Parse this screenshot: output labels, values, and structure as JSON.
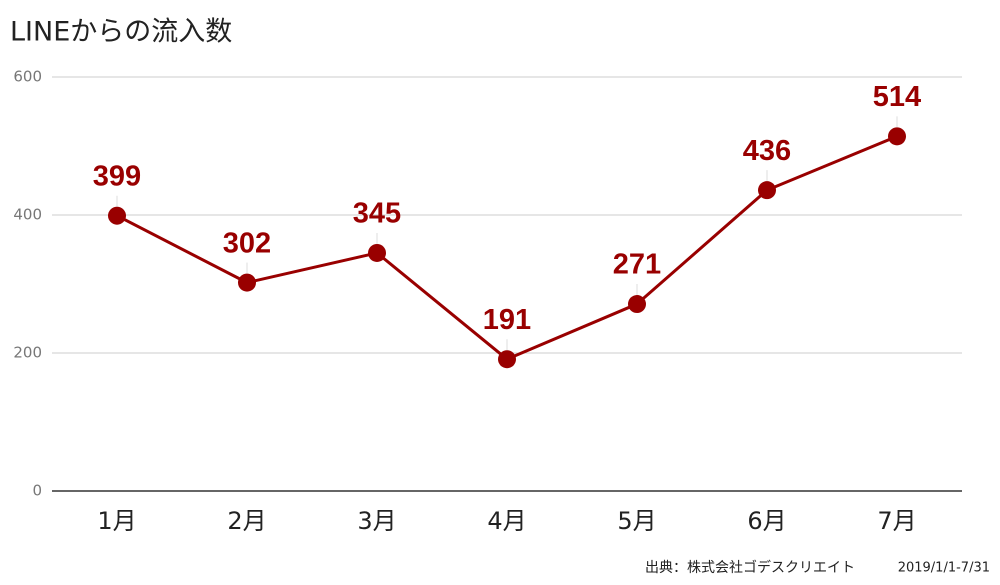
{
  "chart_data": {
    "type": "line",
    "title": "LINEからの流入数",
    "categories": [
      "1月",
      "2月",
      "3月",
      "4月",
      "5月",
      "6月",
      "7月"
    ],
    "series": [
      {
        "name": "LINEからの流入数",
        "color": "#990000",
        "values": [
          399,
          302,
          345,
          191,
          271,
          436,
          514
        ]
      }
    ],
    "ylim": [
      0,
      600
    ],
    "yticks": [
      0,
      200,
      400,
      600
    ],
    "grid": true,
    "source": "出典：株式会社ゴデスクリエイト",
    "period": "2019/1/1-7/31"
  }
}
